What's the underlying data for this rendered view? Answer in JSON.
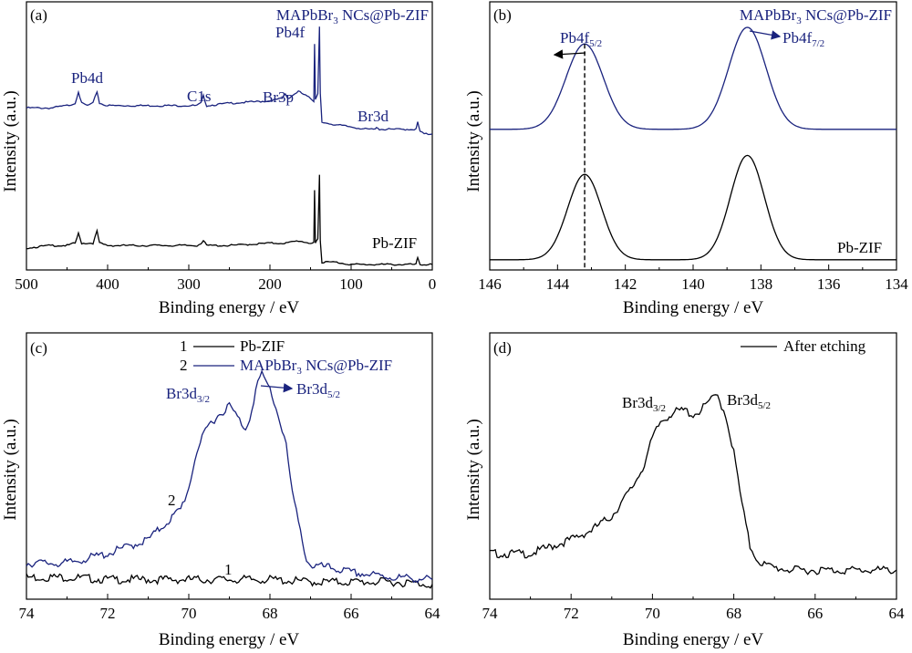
{
  "chart_data": [
    {
      "panel": "(a)",
      "type": "line",
      "xlabel": "Binding energy / eV",
      "ylabel": "Intensity (a.u.)",
      "xlim": [
        500,
        0
      ],
      "xticks": [
        500,
        400,
        300,
        200,
        100,
        0
      ],
      "ylim": [
        0,
        1
      ],
      "series": [
        {
          "name": "MAPbBr3 NCs@Pb-ZIF",
          "color": "#1a237e",
          "x": [
            500,
            470,
            450,
            440,
            436,
            432,
            425,
            418,
            413,
            410,
            400,
            380,
            350,
            300,
            290,
            285,
            282,
            278,
            250,
            200,
            185,
            181,
            178,
            165,
            150,
            146,
            145,
            144,
            141,
            139,
            138,
            136,
            120,
            100,
            80,
            70,
            68,
            65,
            40,
            20,
            18,
            15,
            10,
            0
          ],
          "y": [
            0.66,
            0.66,
            0.67,
            0.68,
            0.73,
            0.68,
            0.67,
            0.68,
            0.73,
            0.68,
            0.67,
            0.67,
            0.67,
            0.67,
            0.67,
            0.68,
            0.71,
            0.67,
            0.68,
            0.69,
            0.7,
            0.72,
            0.7,
            0.73,
            0.7,
            0.69,
            0.93,
            0.7,
            0.72,
            1.0,
            0.72,
            0.6,
            0.59,
            0.58,
            0.57,
            0.57,
            0.58,
            0.57,
            0.57,
            0.57,
            0.6,
            0.56,
            0.55,
            0.55
          ]
        },
        {
          "name": "Pb-ZIF",
          "color": "#000000",
          "x": [
            500,
            470,
            450,
            440,
            436,
            432,
            425,
            418,
            413,
            410,
            400,
            380,
            350,
            300,
            290,
            285,
            282,
            278,
            250,
            200,
            180,
            165,
            150,
            146,
            145,
            144,
            141,
            139,
            138,
            136,
            120,
            100,
            80,
            40,
            20,
            18,
            15,
            10,
            0
          ],
          "y": [
            0.07,
            0.08,
            0.08,
            0.09,
            0.13,
            0.09,
            0.09,
            0.09,
            0.14,
            0.09,
            0.08,
            0.08,
            0.08,
            0.08,
            0.08,
            0.09,
            0.1,
            0.08,
            0.08,
            0.09,
            0.09,
            0.1,
            0.09,
            0.09,
            0.31,
            0.09,
            0.11,
            0.38,
            0.1,
            0.01,
            0.01,
            0.0,
            0.0,
            0.0,
            0.0,
            0.03,
            0.0,
            0.0,
            0.0
          ]
        }
      ],
      "annotations": [
        "Pb4d",
        "C1s",
        "Br3p",
        "Pb4f",
        "Br3d",
        "MAPbBr3 NCs@Pb-ZIF",
        "Pb-ZIF"
      ]
    },
    {
      "panel": "(b)",
      "type": "line",
      "xlabel": "Binding energy / eV",
      "ylabel": "Intensity (a.u.)",
      "xlim": [
        146,
        134
      ],
      "xticks": [
        146,
        144,
        142,
        140,
        138,
        136,
        134
      ],
      "ylim": [
        0,
        1
      ],
      "series": [
        {
          "name": "MAPbBr3 NCs@Pb-ZIF",
          "color": "#1a237e",
          "baseline": 0.57,
          "peaks": [
            {
              "center": 143.2,
              "height": 0.36,
              "width": 0.55
            },
            {
              "center": 138.4,
              "height": 0.43,
              "width": 0.55
            }
          ]
        },
        {
          "name": "Pb-ZIF",
          "color": "#000000",
          "baseline": 0.02,
          "peaks": [
            {
              "center": 143.2,
              "height": 0.36,
              "width": 0.5
            },
            {
              "center": 138.4,
              "height": 0.44,
              "width": 0.5
            }
          ]
        }
      ],
      "dashed_line_x": 143.2,
      "annotations": [
        "Pb4f5/2",
        "Pb4f7/2",
        "MAPbBr3 NCs@Pb-ZIF",
        "Pb-ZIF"
      ]
    },
    {
      "panel": "(c)",
      "type": "line",
      "xlabel": "Binding energy / eV",
      "ylabel": "Intensity (a.u.)",
      "xlim": [
        74,
        64
      ],
      "xticks": [
        74,
        72,
        70,
        68,
        66,
        64
      ],
      "ylim": [
        0,
        1
      ],
      "series": [
        {
          "name": "Pb-ZIF",
          "label": "1",
          "color": "#000000",
          "x": [
            74,
            73,
            72,
            71,
            70,
            69,
            68,
            67,
            66,
            65,
            64
          ],
          "y": [
            0.07,
            0.07,
            0.06,
            0.06,
            0.06,
            0.06,
            0.06,
            0.05,
            0.05,
            0.05,
            0.04
          ]
        },
        {
          "name": "MAPbBr3 NCs@Pb-ZIF",
          "label": "2",
          "color": "#1a237e",
          "x": [
            74,
            73,
            72.5,
            72,
            71.5,
            71,
            70.5,
            70.2,
            70,
            69.8,
            69.5,
            69.2,
            69.0,
            68.8,
            68.6,
            68.5,
            68.3,
            68.2,
            68.0,
            67.8,
            67.6,
            67.5,
            67.3,
            67.1,
            67.0,
            66.5,
            66,
            65,
            64
          ],
          "y": [
            0.13,
            0.13,
            0.15,
            0.17,
            0.2,
            0.23,
            0.31,
            0.36,
            0.45,
            0.61,
            0.72,
            0.77,
            0.8,
            0.75,
            0.7,
            0.75,
            0.9,
            0.93,
            0.87,
            0.76,
            0.64,
            0.48,
            0.3,
            0.15,
            0.12,
            0.11,
            0.09,
            0.07,
            0.06
          ]
        }
      ],
      "legend": [
        {
          "num": "1",
          "text": "Pb-ZIF"
        },
        {
          "num": "2",
          "text": "MAPbBr3 NCs@Pb-ZIF"
        }
      ],
      "annotations": [
        "Br3d3/2",
        "Br3d5/2",
        "2",
        "1"
      ]
    },
    {
      "panel": "(d)",
      "type": "line",
      "xlabel": "Binding energy / eV",
      "ylabel": "Intensity (a.u.)",
      "xlim": [
        74,
        64
      ],
      "xticks": [
        74,
        72,
        70,
        68,
        66,
        64
      ],
      "ylim": [
        0,
        1
      ],
      "series": [
        {
          "name": "After etching",
          "color": "#000000",
          "x": [
            74,
            73,
            72.5,
            72,
            71.5,
            71,
            70.5,
            70.2,
            70,
            69.8,
            69.5,
            69.2,
            69.0,
            68.8,
            68.6,
            68.4,
            68.2,
            68.0,
            67.8,
            67.6,
            67.4,
            67.2,
            67,
            66.5,
            66,
            65,
            64
          ],
          "y": [
            0.17,
            0.17,
            0.2,
            0.23,
            0.27,
            0.33,
            0.45,
            0.55,
            0.66,
            0.73,
            0.77,
            0.78,
            0.76,
            0.78,
            0.82,
            0.84,
            0.76,
            0.6,
            0.38,
            0.2,
            0.14,
            0.12,
            0.11,
            0.1,
            0.1,
            0.1,
            0.1
          ]
        }
      ],
      "annotations": [
        "Br3d3/2",
        "Br3d5/2"
      ]
    }
  ],
  "labels": {
    "a": "(a)",
    "b": "(b)",
    "c": "(c)",
    "d": "(d)",
    "xlabel": "Binding energy / eV",
    "ylabel": "Intensity (a.u.)",
    "a_top": "MAPbBr3 NCs@Pb-ZIF",
    "a_pb4f": "Pb4f",
    "a_pb4d": "Pb4d",
    "a_c1s": "C1s",
    "a_br3p": "Br3p",
    "a_br3d": "Br3d",
    "a_bottom": "Pb-ZIF",
    "b_top": "MAPbBr3 NCs@Pb-ZIF",
    "b_pb4f52": "Pb4f5/2",
    "b_pb4f72": "Pb4f7/2",
    "b_bottom": "Pb-ZIF",
    "c_leg1_num": "1",
    "c_leg1": "Pb-ZIF",
    "c_leg2_num": "2",
    "c_leg2": "MAPbBr3 NCs@Pb-ZIF",
    "c_br3d32": "Br3d3/2",
    "c_br3d52": "Br3d5/2",
    "c_curve2": "2",
    "c_curve1": "1",
    "d_legend": "After etching",
    "d_br3d32": "Br3d3/2",
    "d_br3d52": "Br3d5/2"
  }
}
